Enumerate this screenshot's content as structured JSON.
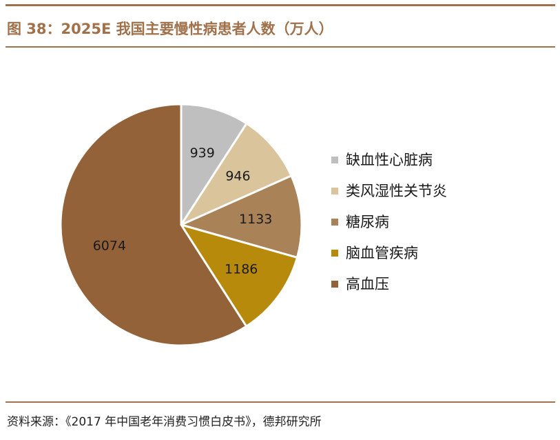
{
  "header": {
    "title": "图 38：2025E 我国主要慢性病患者人数（万人）"
  },
  "footer": {
    "source": "资料来源：《2017 年中国老年消费习惯白皮书》，德邦研究所"
  },
  "colors": {
    "accent": "#a0714a"
  },
  "chart_data": {
    "type": "pie",
    "title": "图 38：2025E 我国主要慢性病患者人数（万人）",
    "unit": "万人",
    "legend_position": "right",
    "slices": [
      {
        "label": "缺血性心脏病",
        "value": 939,
        "color": "#bfbfbf"
      },
      {
        "label": "类风湿性关节炎",
        "value": 946,
        "color": "#d9c49b"
      },
      {
        "label": "糖尿病",
        "value": 1133,
        "color": "#a98258"
      },
      {
        "label": "脑血管疾病",
        "value": 1186,
        "color": "#b88a0b"
      },
      {
        "label": "高血压",
        "value": 6074,
        "color": "#936239"
      }
    ]
  }
}
